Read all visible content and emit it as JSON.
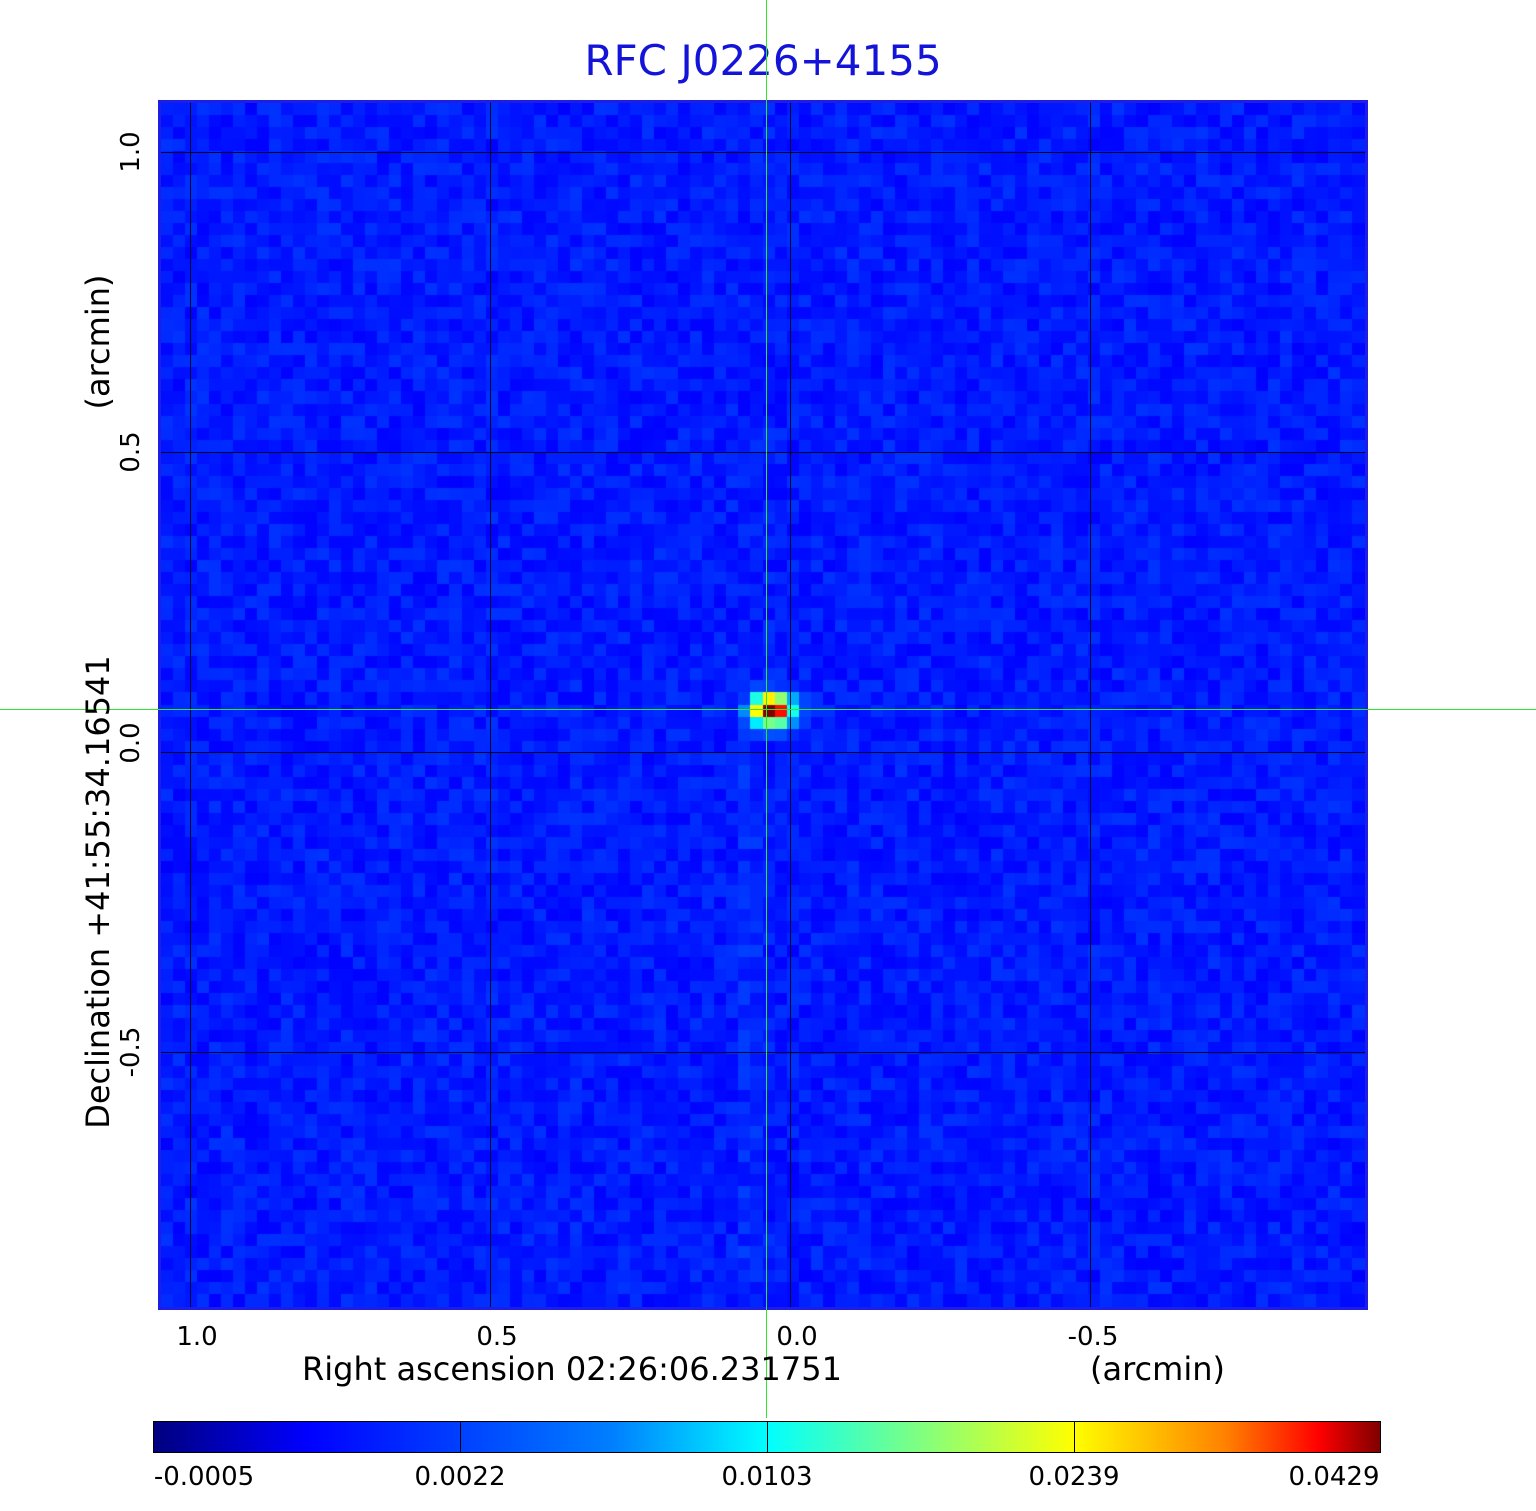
{
  "title": "RFC J0226+4155",
  "image": {
    "colormap": "jet",
    "peak_offset_arcmin": {
      "ra": 0.03,
      "dec": 0.07
    },
    "background_color": "#1f4ef0",
    "frame_color": "#1d1de6",
    "crosshair_color": "#2ce82c"
  },
  "axes": {
    "x_label": "Right ascension  02:26:06.231751",
    "x_unit": "(arcmin)",
    "y_label": "Declination  +41:55:34.16541",
    "y_unit": "(arcmin)",
    "x_ticks": [
      "1.0",
      "0.5",
      "0.0",
      "-0.5"
    ],
    "y_ticks": [
      "1.0",
      "0.5",
      "0.0",
      "-0.5"
    ],
    "grid": true
  },
  "colorbar": {
    "ticks": [
      "-0.0005",
      "0.0022",
      "0.0103",
      "0.0239",
      "0.0429"
    ]
  }
}
